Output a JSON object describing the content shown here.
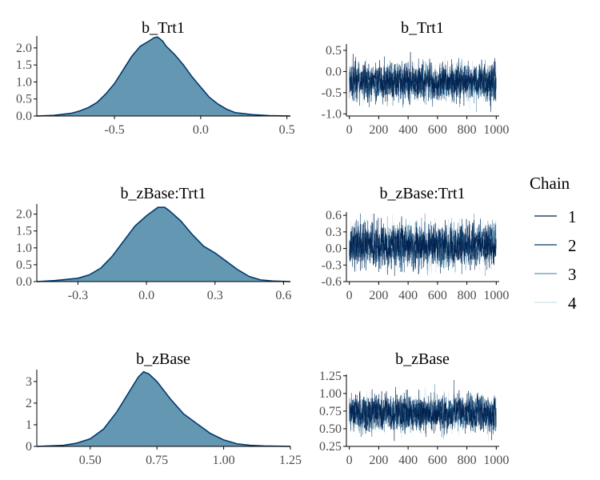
{
  "chart_data": [
    {
      "type": "area",
      "kind": "density",
      "title": "b_Trt1",
      "xlim": [
        -0.95,
        0.52
      ],
      "ylim": [
        0,
        2.35
      ],
      "xticks": [
        -0.5,
        0.0,
        0.5
      ],
      "xtick_labels": [
        "-0.5",
        "0.0",
        "0.5"
      ],
      "yticks": [
        0.0,
        0.5,
        1.0,
        1.5,
        2.0
      ],
      "ytick_labels": [
        "0.0",
        "0.5",
        "1.0",
        "1.5",
        "2.0"
      ],
      "x": [
        -0.95,
        -0.85,
        -0.75,
        -0.7,
        -0.65,
        -0.6,
        -0.55,
        -0.5,
        -0.45,
        -0.4,
        -0.35,
        -0.3,
        -0.27,
        -0.25,
        -0.22,
        -0.2,
        -0.15,
        -0.1,
        -0.05,
        0.0,
        0.05,
        0.1,
        0.15,
        0.2,
        0.3,
        0.4,
        0.52
      ],
      "y": [
        0.0,
        0.02,
        0.08,
        0.15,
        0.25,
        0.4,
        0.65,
        0.95,
        1.35,
        1.75,
        2.05,
        2.2,
        2.3,
        2.32,
        2.2,
        2.05,
        1.8,
        1.5,
        1.15,
        0.85,
        0.55,
        0.35,
        0.2,
        0.1,
        0.04,
        0.01,
        0.0
      ]
    },
    {
      "type": "line",
      "kind": "trace",
      "title": "b_Trt1",
      "xlim": [
        -20,
        1020
      ],
      "ylim": [
        -1.05,
        0.65
      ],
      "xticks": [
        0,
        200,
        400,
        600,
        800,
        1000
      ],
      "xtick_labels": [
        "0",
        "200",
        "400",
        "600",
        "800",
        "1000"
      ],
      "yticks": [
        -1.0,
        -0.5,
        0.0,
        0.5
      ],
      "ytick_labels": [
        "-1.0",
        "-0.5",
        "0.0",
        "0.5"
      ],
      "chains": 4,
      "iterations": 1000,
      "mean": -0.25,
      "sd": 0.2,
      "y_observed_min": -0.95,
      "y_observed_max": 0.52
    },
    {
      "type": "area",
      "kind": "density",
      "title": "b_zBase:Trt1",
      "xlim": [
        -0.48,
        0.63
      ],
      "ylim": [
        0,
        2.3
      ],
      "xticks": [
        -0.3,
        0.0,
        0.3,
        0.6
      ],
      "xtick_labels": [
        "-0.3",
        "0.0",
        "0.3",
        "0.6"
      ],
      "yticks": [
        0.0,
        0.5,
        1.0,
        1.5,
        2.0
      ],
      "ytick_labels": [
        "0.0",
        "0.5",
        "1.0",
        "1.5",
        "2.0"
      ],
      "x": [
        -0.48,
        -0.4,
        -0.3,
        -0.25,
        -0.2,
        -0.15,
        -0.1,
        -0.05,
        0.0,
        0.03,
        0.05,
        0.08,
        0.1,
        0.15,
        0.2,
        0.25,
        0.3,
        0.35,
        0.4,
        0.45,
        0.5,
        0.55,
        0.63
      ],
      "y": [
        0.0,
        0.03,
        0.1,
        0.2,
        0.4,
        0.75,
        1.2,
        1.65,
        1.95,
        2.1,
        2.2,
        2.2,
        2.1,
        1.8,
        1.4,
        1.05,
        0.85,
        0.6,
        0.35,
        0.15,
        0.05,
        0.02,
        0.0
      ]
    },
    {
      "type": "line",
      "kind": "trace",
      "title": "b_zBase:Trt1",
      "xlim": [
        -20,
        1020
      ],
      "ylim": [
        -0.6,
        0.66
      ],
      "xticks": [
        0,
        200,
        400,
        600,
        800,
        1000
      ],
      "xtick_labels": [
        "0",
        "200",
        "400",
        "600",
        "800",
        "1000"
      ],
      "yticks": [
        -0.6,
        -0.3,
        0.0,
        0.3,
        0.6
      ],
      "ytick_labels": [
        "-0.6",
        "-0.3",
        "0.0",
        "0.3",
        "0.6"
      ],
      "chains": 4,
      "iterations": 1000,
      "mean": 0.06,
      "sd": 0.18,
      "y_observed_min": -0.5,
      "y_observed_max": 0.63
    },
    {
      "type": "area",
      "kind": "density",
      "title": "b_zBase",
      "xlim": [
        0.3,
        1.25
      ],
      "ylim": [
        0,
        3.55
      ],
      "xticks": [
        0.5,
        0.75,
        1.0,
        1.25
      ],
      "xtick_labels": [
        "0.50",
        "0.75",
        "1.00",
        "1.25"
      ],
      "yticks": [
        0,
        1,
        2,
        3
      ],
      "ytick_labels": [
        "0",
        "1",
        "2",
        "3"
      ],
      "x": [
        0.3,
        0.4,
        0.45,
        0.5,
        0.55,
        0.6,
        0.65,
        0.68,
        0.7,
        0.72,
        0.75,
        0.8,
        0.85,
        0.9,
        0.95,
        1.0,
        1.05,
        1.1,
        1.15,
        1.25
      ],
      "y": [
        0.0,
        0.05,
        0.15,
        0.35,
        0.8,
        1.6,
        2.6,
        3.2,
        3.45,
        3.35,
        3.0,
        2.2,
        1.5,
        1.05,
        0.6,
        0.3,
        0.12,
        0.05,
        0.02,
        0.0
      ]
    },
    {
      "type": "line",
      "kind": "trace",
      "title": "b_zBase",
      "xlim": [
        -20,
        1020
      ],
      "ylim": [
        0.25,
        1.27
      ],
      "xticks": [
        0,
        200,
        400,
        600,
        800,
        1000
      ],
      "xtick_labels": [
        "0",
        "200",
        "400",
        "600",
        "800",
        "1000"
      ],
      "yticks": [
        0.25,
        0.5,
        0.75,
        1.0,
        1.25
      ],
      "ytick_labels": [
        "0.25",
        "0.50",
        "0.75",
        "1.00",
        "1.25"
      ],
      "chains": 4,
      "iterations": 1000,
      "mean": 0.72,
      "sd": 0.12,
      "y_observed_min": 0.32,
      "y_observed_max": 1.2
    }
  ],
  "legend": {
    "title": "Chain",
    "items": [
      {
        "label": "1",
        "color": "#011f4b"
      },
      {
        "label": "2",
        "color": "#03396c"
      },
      {
        "label": "3",
        "color": "#6497b1"
      },
      {
        "label": "4",
        "color": "#d1e1ec"
      }
    ]
  },
  "colors": {
    "density_fill": "#6497b1",
    "density_line": "#03396c",
    "axis": "#000000",
    "tick_text": "#4d4d4d"
  }
}
